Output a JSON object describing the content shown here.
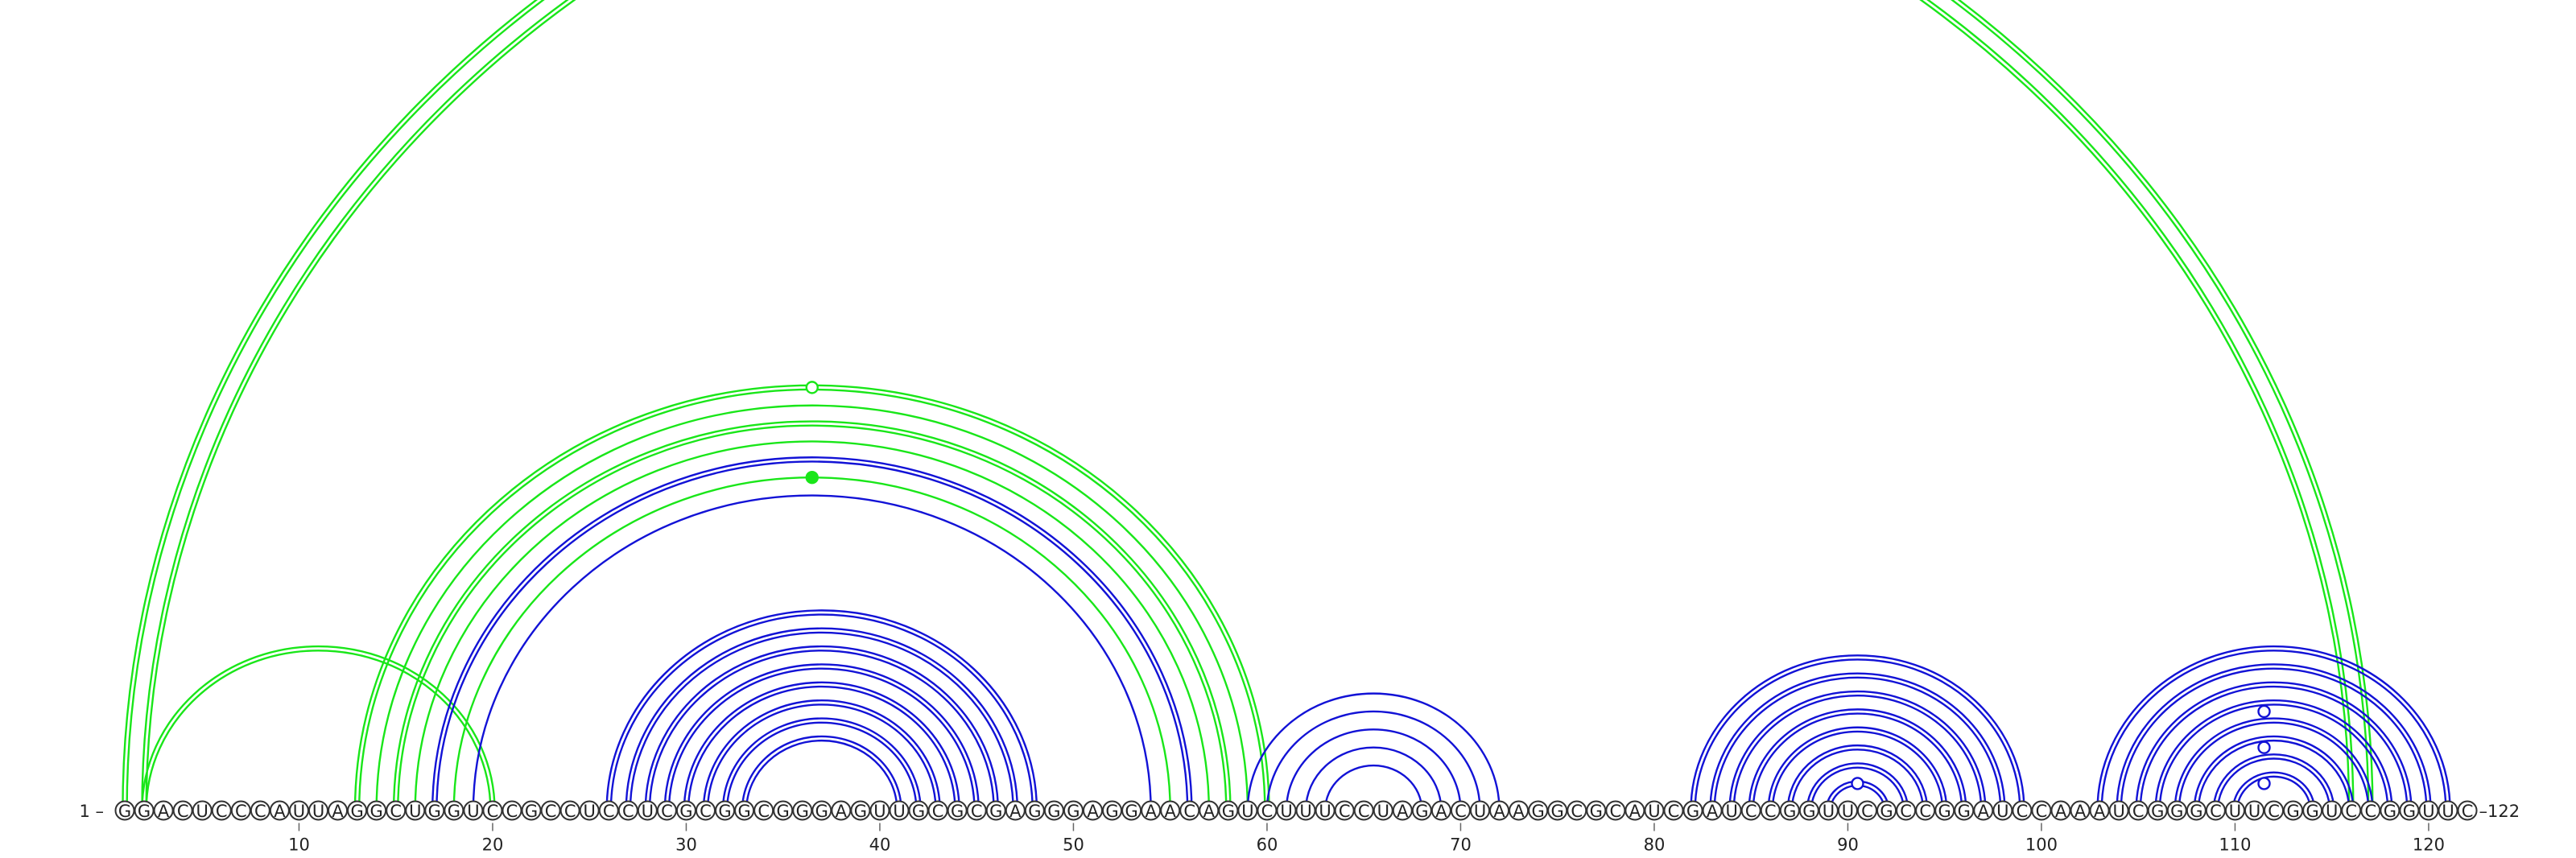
{
  "sequence": "GGACUCCCAUUAGGCUGGUCCGCCUCCUCGCGGCGGGAGUUGCGCGAGGGAGGAACAGUCUUUCCUAGACUAAGGCGCAUCGAUCCGGUUCGCCGGAUCCAAAUCGGGCUUCGGUCCGGUUC",
  "labels": {
    "start": "1 –",
    "end": "–122"
  },
  "ticks": [
    10,
    20,
    30,
    40,
    50,
    60,
    70,
    80,
    90,
    100,
    110,
    120
  ],
  "colors": {
    "green": "#19e619",
    "blue": "#1212d6"
  },
  "chart_data": {
    "type": "arc-diagram",
    "sequence_length": 122,
    "helices": [
      {
        "color": "green",
        "pairs": [
          [
            1,
            117
          ],
          [
            2,
            116
          ]
        ],
        "double": true
      },
      {
        "color": "green",
        "pairs": [
          [
            2,
            20
          ]
        ],
        "double": true
      },
      {
        "color": "green",
        "pairs": [
          [
            13,
            60
          ]
        ],
        "double": true
      },
      {
        "color": "green",
        "pairs": [
          [
            14,
            59
          ]
        ],
        "double": false
      },
      {
        "color": "green",
        "pairs": [
          [
            15,
            58
          ]
        ],
        "double": true
      },
      {
        "color": "green",
        "pairs": [
          [
            16,
            57
          ]
        ],
        "double": false
      },
      {
        "color": "blue",
        "pairs": [
          [
            17,
            56
          ]
        ],
        "double": true
      },
      {
        "color": "green",
        "pairs": [
          [
            18,
            55
          ]
        ],
        "double": false
      },
      {
        "color": "blue",
        "pairs": [
          [
            19,
            54
          ]
        ],
        "double": false
      },
      {
        "color": "blue",
        "pairs": [
          [
            26,
            48
          ],
          [
            27,
            47
          ],
          [
            28,
            46
          ],
          [
            29,
            45
          ],
          [
            30,
            44
          ],
          [
            31,
            43
          ],
          [
            32,
            42
          ],
          [
            33,
            41
          ]
        ],
        "double": true
      },
      {
        "color": "blue",
        "pairs": [
          [
            59,
            72
          ],
          [
            60,
            71
          ],
          [
            61,
            70
          ],
          [
            62,
            69
          ],
          [
            63,
            68
          ]
        ],
        "double": false
      },
      {
        "color": "blue",
        "pairs": [
          [
            82,
            99
          ],
          [
            83,
            98
          ],
          [
            84,
            97
          ],
          [
            85,
            96
          ],
          [
            86,
            95
          ],
          [
            87,
            94
          ],
          [
            88,
            93
          ],
          [
            89,
            92
          ]
        ],
        "double": true
      },
      {
        "color": "blue",
        "pairs": [
          [
            103,
            121
          ],
          [
            104,
            120
          ],
          [
            105,
            119
          ],
          [
            106,
            118
          ],
          [
            107,
            117
          ],
          [
            108,
            116
          ],
          [
            109,
            115
          ],
          [
            110,
            114
          ]
        ],
        "double": true
      }
    ],
    "markers": [
      {
        "color": "green",
        "filled": false,
        "pos": 36.5,
        "arc": [
          13,
          60
        ]
      },
      {
        "color": "green",
        "filled": true,
        "pos": 36.5,
        "arc": [
          18,
          55
        ]
      },
      {
        "color": "blue",
        "filled": false,
        "pos": 90.5,
        "arc": [
          89,
          92
        ]
      },
      {
        "color": "blue",
        "filled": false,
        "pos": 111.5,
        "arc": [
          106,
          117
        ]
      },
      {
        "color": "blue",
        "filled": false,
        "pos": 111.5,
        "arc": [
          108,
          115
        ]
      },
      {
        "color": "blue",
        "filled": false,
        "pos": 111.5,
        "arc": [
          110,
          113
        ]
      }
    ]
  }
}
